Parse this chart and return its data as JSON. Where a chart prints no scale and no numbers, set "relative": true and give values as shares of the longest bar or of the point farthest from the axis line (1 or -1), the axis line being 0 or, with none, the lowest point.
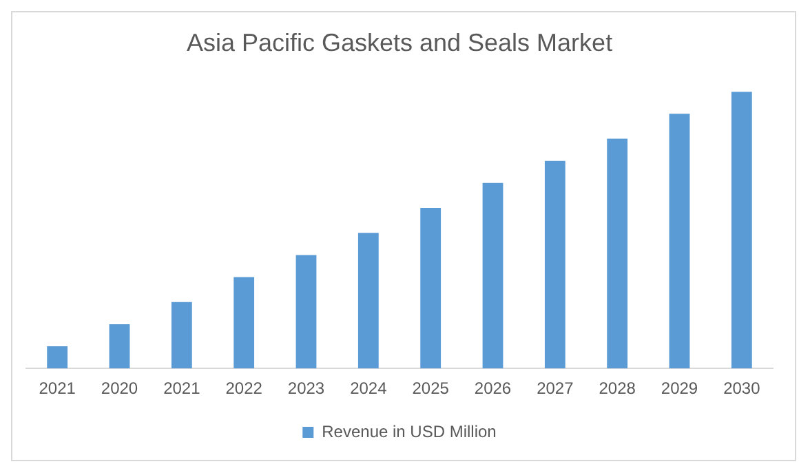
{
  "chart_data": {
    "type": "bar",
    "title": "Asia Pacific Gaskets and Seals Market",
    "relative": true,
    "categories": [
      "2021",
      "2020",
      "2021",
      "2022",
      "2023",
      "2024",
      "2025",
      "2026",
      "2027",
      "2028",
      "2029",
      "2030"
    ],
    "series": [
      {
        "name": "Revenue in USD Million",
        "color": "#5b9bd5",
        "values": [
          0.08,
          0.16,
          0.24,
          0.33,
          0.41,
          0.49,
          0.58,
          0.67,
          0.75,
          0.83,
          0.92,
          1
        ]
      }
    ],
    "grid": false,
    "legend": "bottom"
  }
}
